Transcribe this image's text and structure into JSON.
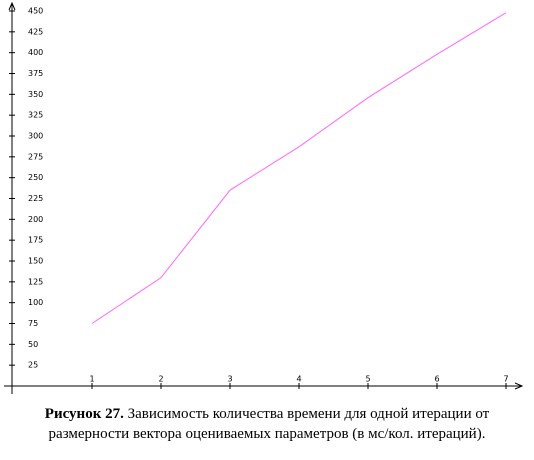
{
  "chart_data": {
    "type": "line",
    "x": [
      1,
      2,
      3,
      4,
      5,
      6,
      7
    ],
    "series": [
      {
        "color": "#ff66ff",
        "values": [
          75,
          130,
          235,
          287,
          346,
          398,
          448
        ]
      }
    ],
    "xlim": [
      0,
      7
    ],
    "ylim": [
      0,
      450
    ],
    "xticks": [
      1,
      2,
      3,
      4,
      5,
      6,
      7
    ],
    "yticks": [
      25,
      50,
      75,
      100,
      125,
      150,
      175,
      200,
      225,
      250,
      275,
      300,
      325,
      350,
      375,
      400,
      425,
      450
    ]
  },
  "caption": {
    "label": "Рисунок 27.",
    "text": "Зависимость количества времени для одной итерации от размерности вектора оцениваемых параметров (в мс/кол. итераций)."
  }
}
